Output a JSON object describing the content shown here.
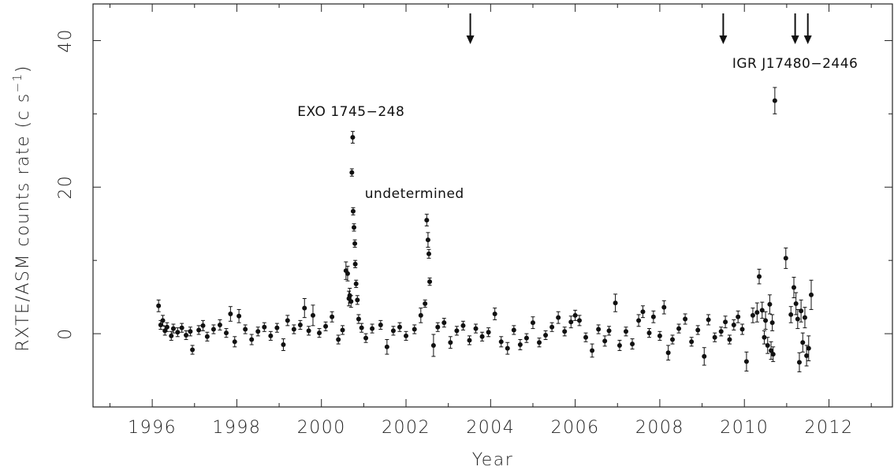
{
  "chart_data": {
    "type": "scatter",
    "xlabel": "Year",
    "ylabel": "RXTE/ASM counts rate (c s",
    "ylabel_unit_exp": "−1",
    "ylabel_close": ")",
    "xlim": [
      1994.6,
      2013.5
    ],
    "ylim": [
      -10,
      45
    ],
    "xticks": [
      1996,
      1998,
      2000,
      2002,
      2004,
      2006,
      2008,
      2010,
      2012
    ],
    "xtick_labels": [
      "1996",
      "1998",
      "2000",
      "2002",
      "2004",
      "2006",
      "2008",
      "2010",
      "2012"
    ],
    "yticks": [
      0,
      20,
      40
    ],
    "ytick_labels": [
      "0",
      "20",
      "40"
    ],
    "annotations": [
      {
        "text": "EXO 1745−248",
        "x": 2000.7,
        "y": 29.7
      },
      {
        "text": "undetermined",
        "x": 2002.2,
        "y": 18.5
      },
      {
        "text": "IGR J17480−2446",
        "x": 2011.2,
        "y": 36.3
      }
    ],
    "arrows": [
      {
        "x": 2003.52
      },
      {
        "x": 2009.5
      },
      {
        "x": 2011.2
      },
      {
        "x": 2011.5
      }
    ],
    "series": [
      {
        "points": [
          [
            1996.15,
            3.8,
            0.8
          ],
          [
            1996.2,
            1.2,
            0.6
          ],
          [
            1996.25,
            1.8,
            0.7
          ],
          [
            1996.3,
            0.4,
            0.6
          ],
          [
            1996.35,
            0.9,
            0.6
          ],
          [
            1996.45,
            -0.3,
            0.6
          ],
          [
            1996.5,
            0.7,
            0.6
          ],
          [
            1996.6,
            0.2,
            0.6
          ],
          [
            1996.7,
            0.8,
            0.6
          ],
          [
            1996.8,
            -0.2,
            0.6
          ],
          [
            1996.9,
            0.3,
            0.6
          ],
          [
            1996.95,
            -2.2,
            0.6
          ],
          [
            1997.1,
            0.5,
            0.6
          ],
          [
            1997.2,
            1.1,
            0.7
          ],
          [
            1997.3,
            -0.4,
            0.6
          ],
          [
            1997.45,
            0.6,
            0.6
          ],
          [
            1997.6,
            1.2,
            0.7
          ],
          [
            1997.75,
            0.1,
            0.6
          ],
          [
            1997.85,
            2.7,
            1.0
          ],
          [
            1997.95,
            -1.1,
            0.7
          ],
          [
            1998.05,
            2.4,
            0.9
          ],
          [
            1998.2,
            0.6,
            0.6
          ],
          [
            1998.35,
            -0.8,
            0.7
          ],
          [
            1998.5,
            0.3,
            0.6
          ],
          [
            1998.65,
            0.9,
            0.6
          ],
          [
            1998.8,
            -0.3,
            0.6
          ],
          [
            1998.95,
            0.8,
            0.6
          ],
          [
            1999.1,
            -1.5,
            0.8
          ],
          [
            1999.2,
            1.8,
            0.7
          ],
          [
            1999.35,
            0.6,
            0.6
          ],
          [
            1999.5,
            1.2,
            0.6
          ],
          [
            1999.6,
            3.5,
            1.3
          ],
          [
            1999.7,
            0.4,
            0.6
          ],
          [
            1999.8,
            2.5,
            1.4
          ],
          [
            1999.95,
            0.1,
            0.6
          ],
          [
            2000.1,
            1.0,
            0.6
          ],
          [
            2000.25,
            2.3,
            0.7
          ],
          [
            2000.4,
            -0.8,
            0.6
          ],
          [
            2000.5,
            0.5,
            0.6
          ],
          [
            2000.58,
            8.6,
            1.2
          ],
          [
            2000.62,
            8.2,
            1.0
          ],
          [
            2000.65,
            4.8,
            1.0
          ],
          [
            2000.67,
            5.2,
            1.0
          ],
          [
            2000.7,
            4.4,
            0.8
          ],
          [
            2000.74,
            26.8,
            0.8
          ],
          [
            2000.72,
            22.0,
            0.5
          ],
          [
            2000.75,
            16.7,
            0.5
          ],
          [
            2000.77,
            14.5,
            0.5
          ],
          [
            2000.79,
            12.3,
            0.5
          ],
          [
            2000.8,
            9.5,
            0.5
          ],
          [
            2000.82,
            6.8,
            0.5
          ],
          [
            2000.85,
            4.6,
            0.6
          ],
          [
            2000.88,
            2.0,
            0.6
          ],
          [
            2000.95,
            0.8,
            0.6
          ],
          [
            2001.05,
            -0.6,
            0.6
          ],
          [
            2001.2,
            0.7,
            0.6
          ],
          [
            2001.4,
            1.2,
            0.6
          ],
          [
            2001.55,
            -1.8,
            1.0
          ],
          [
            2001.7,
            0.4,
            0.6
          ],
          [
            2001.85,
            0.9,
            0.6
          ],
          [
            2002.0,
            -0.3,
            0.6
          ],
          [
            2002.2,
            0.6,
            0.6
          ],
          [
            2002.35,
            2.5,
            1.0
          ],
          [
            2002.45,
            4.1,
            0.5
          ],
          [
            2002.49,
            15.5,
            0.8
          ],
          [
            2002.52,
            12.8,
            1.0
          ],
          [
            2002.54,
            10.9,
            0.6
          ],
          [
            2002.56,
            7.1,
            0.5
          ],
          [
            2002.65,
            -1.6,
            1.5
          ],
          [
            2002.75,
            0.9,
            0.6
          ],
          [
            2002.9,
            1.5,
            0.6
          ],
          [
            2003.05,
            -1.2,
            0.8
          ],
          [
            2003.2,
            0.4,
            0.6
          ],
          [
            2003.35,
            1.1,
            0.6
          ],
          [
            2003.5,
            -0.9,
            0.6
          ],
          [
            2003.65,
            0.7,
            0.6
          ],
          [
            2003.8,
            -0.4,
            0.6
          ],
          [
            2003.95,
            0.2,
            0.6
          ],
          [
            2004.1,
            2.7,
            0.8
          ],
          [
            2004.25,
            -1.1,
            0.7
          ],
          [
            2004.4,
            -2.0,
            0.8
          ],
          [
            2004.55,
            0.5,
            0.6
          ],
          [
            2004.7,
            -1.5,
            0.7
          ],
          [
            2004.85,
            -0.6,
            0.6
          ],
          [
            2005.0,
            1.5,
            0.8
          ],
          [
            2005.15,
            -1.2,
            0.6
          ],
          [
            2005.3,
            -0.2,
            0.6
          ],
          [
            2005.45,
            0.9,
            0.6
          ],
          [
            2005.6,
            2.2,
            0.8
          ],
          [
            2005.75,
            0.3,
            0.6
          ],
          [
            2005.9,
            1.6,
            0.8
          ],
          [
            2006.0,
            2.5,
            0.7
          ],
          [
            2006.1,
            1.8,
            0.7
          ],
          [
            2006.25,
            -0.5,
            0.6
          ],
          [
            2006.4,
            -2.3,
            0.9
          ],
          [
            2006.55,
            0.6,
            0.6
          ],
          [
            2006.7,
            -1.0,
            0.7
          ],
          [
            2006.8,
            0.4,
            0.6
          ],
          [
            2006.95,
            4.2,
            1.2
          ],
          [
            2007.05,
            -1.6,
            0.7
          ],
          [
            2007.2,
            0.3,
            0.6
          ],
          [
            2007.35,
            -1.4,
            0.7
          ],
          [
            2007.5,
            1.8,
            0.8
          ],
          [
            2007.6,
            3.0,
            0.8
          ],
          [
            2007.75,
            0.1,
            0.6
          ],
          [
            2007.85,
            2.3,
            0.8
          ],
          [
            2008.0,
            -0.3,
            0.6
          ],
          [
            2008.1,
            3.6,
            0.9
          ],
          [
            2008.2,
            -2.6,
            1.0
          ],
          [
            2008.3,
            -0.8,
            0.6
          ],
          [
            2008.45,
            0.7,
            0.6
          ],
          [
            2008.6,
            2.0,
            0.7
          ],
          [
            2008.75,
            -1.1,
            0.6
          ],
          [
            2008.9,
            0.5,
            0.6
          ],
          [
            2009.05,
            -3.1,
            1.2
          ],
          [
            2009.15,
            1.9,
            0.7
          ],
          [
            2009.3,
            -0.5,
            0.6
          ],
          [
            2009.45,
            0.3,
            0.6
          ],
          [
            2009.55,
            1.6,
            0.8
          ],
          [
            2009.65,
            -0.8,
            0.6
          ],
          [
            2009.75,
            1.2,
            0.7
          ],
          [
            2009.85,
            2.3,
            0.8
          ],
          [
            2009.95,
            0.6,
            0.7
          ],
          [
            2010.05,
            -3.8,
            1.3
          ],
          [
            2010.2,
            2.5,
            1.0
          ],
          [
            2010.3,
            2.9,
            1.3
          ],
          [
            2010.35,
            7.8,
            1.0
          ],
          [
            2010.42,
            3.2,
            1.1
          ],
          [
            2010.47,
            -0.5,
            0.9
          ],
          [
            2010.5,
            1.8,
            1.2
          ],
          [
            2010.55,
            -1.6,
            1.1
          ],
          [
            2010.6,
            4.0,
            1.3
          ],
          [
            2010.63,
            -2.3,
            1.2
          ],
          [
            2010.66,
            1.5,
            1.1
          ],
          [
            2010.68,
            -2.8,
            1.0
          ],
          [
            2010.72,
            31.8,
            1.8
          ],
          [
            2010.98,
            10.3,
            1.4
          ],
          [
            2011.1,
            2.6,
            1.1
          ],
          [
            2011.17,
            6.3,
            1.4
          ],
          [
            2011.22,
            4.1,
            1.5
          ],
          [
            2011.26,
            2.0,
            1.3
          ],
          [
            2011.3,
            -3.9,
            1.3
          ],
          [
            2011.34,
            3.1,
            1.5
          ],
          [
            2011.38,
            -1.2,
            1.3
          ],
          [
            2011.43,
            2.2,
            1.4
          ],
          [
            2011.47,
            -3.0,
            1.4
          ],
          [
            2011.52,
            -2.0,
            1.7
          ],
          [
            2011.58,
            5.3,
            2.0
          ]
        ]
      }
    ]
  }
}
